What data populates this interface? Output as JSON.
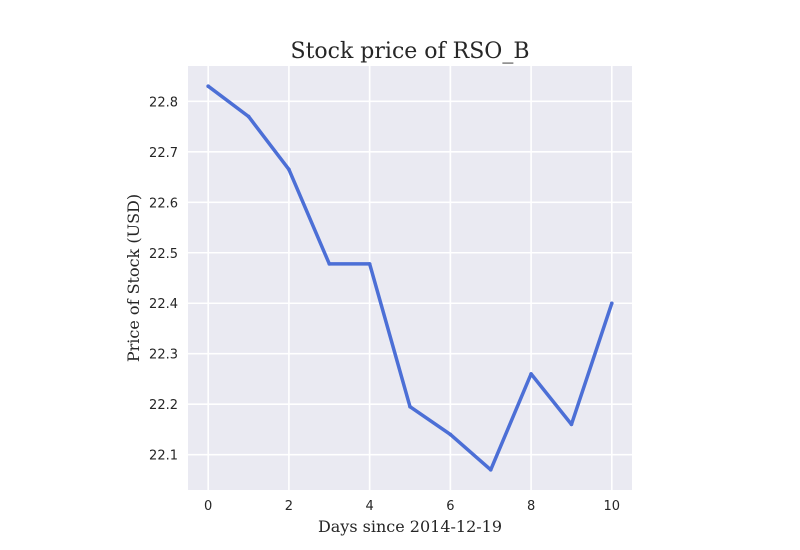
{
  "chart_data": {
    "type": "line",
    "title": "Stock price of RSO_B",
    "xlabel": "Days since 2014-12-19",
    "ylabel": "Price of Stock (USD)",
    "x": [
      0,
      1,
      2,
      3,
      4,
      5,
      6,
      7,
      8,
      9,
      10
    ],
    "series": [
      {
        "values": [
          22.83,
          22.77,
          22.665,
          22.478,
          22.478,
          22.195,
          22.14,
          22.07,
          22.26,
          22.16,
          22.4
        ],
        "color": "#4c6fd6"
      }
    ],
    "xlim": [
      -0.5,
      10.5
    ],
    "ylim": [
      22.03,
      22.87
    ],
    "xticks": [
      "0",
      "2",
      "4",
      "6",
      "8",
      "10"
    ],
    "yticks": [
      "22.1",
      "22.2",
      "22.3",
      "22.4",
      "22.5",
      "22.6",
      "22.7",
      "22.8"
    ],
    "grid": true,
    "background": "#eaeaf2",
    "grid_color": "#ffffff"
  }
}
